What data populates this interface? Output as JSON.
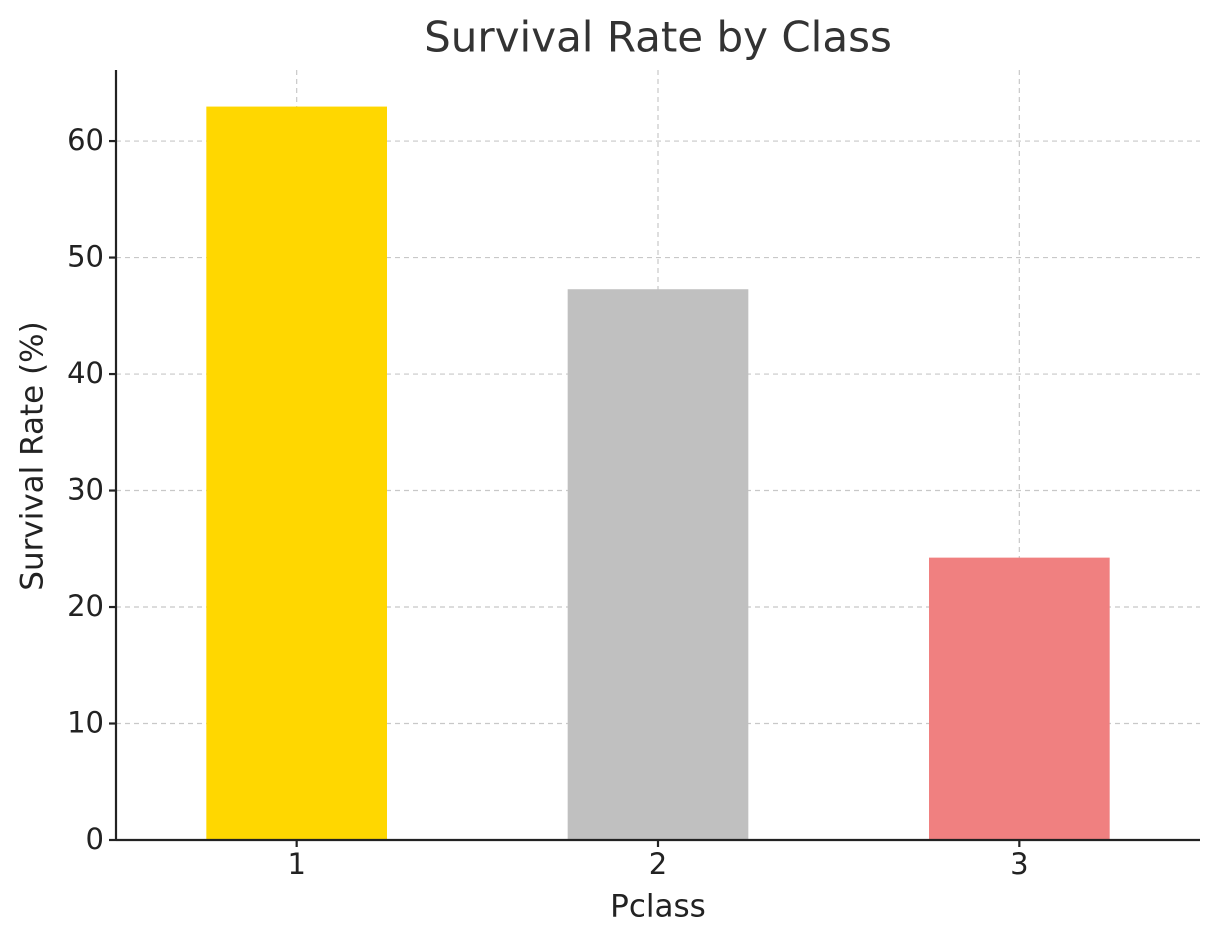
{
  "chart_data": {
    "type": "bar",
    "title": "Survival Rate by Class",
    "x_label": "Pclass",
    "y_label": "Survival Rate (%)",
    "categories": [
      "1",
      "2",
      "3"
    ],
    "values": [
      62.96,
      47.28,
      24.24
    ],
    "colors": [
      "#ffd700",
      "#c0c0c0",
      "#f08080"
    ],
    "ylim": [
      0,
      66.1
    ],
    "yticks": [
      0,
      10,
      20,
      30,
      40,
      50,
      60
    ],
    "grid": true
  }
}
